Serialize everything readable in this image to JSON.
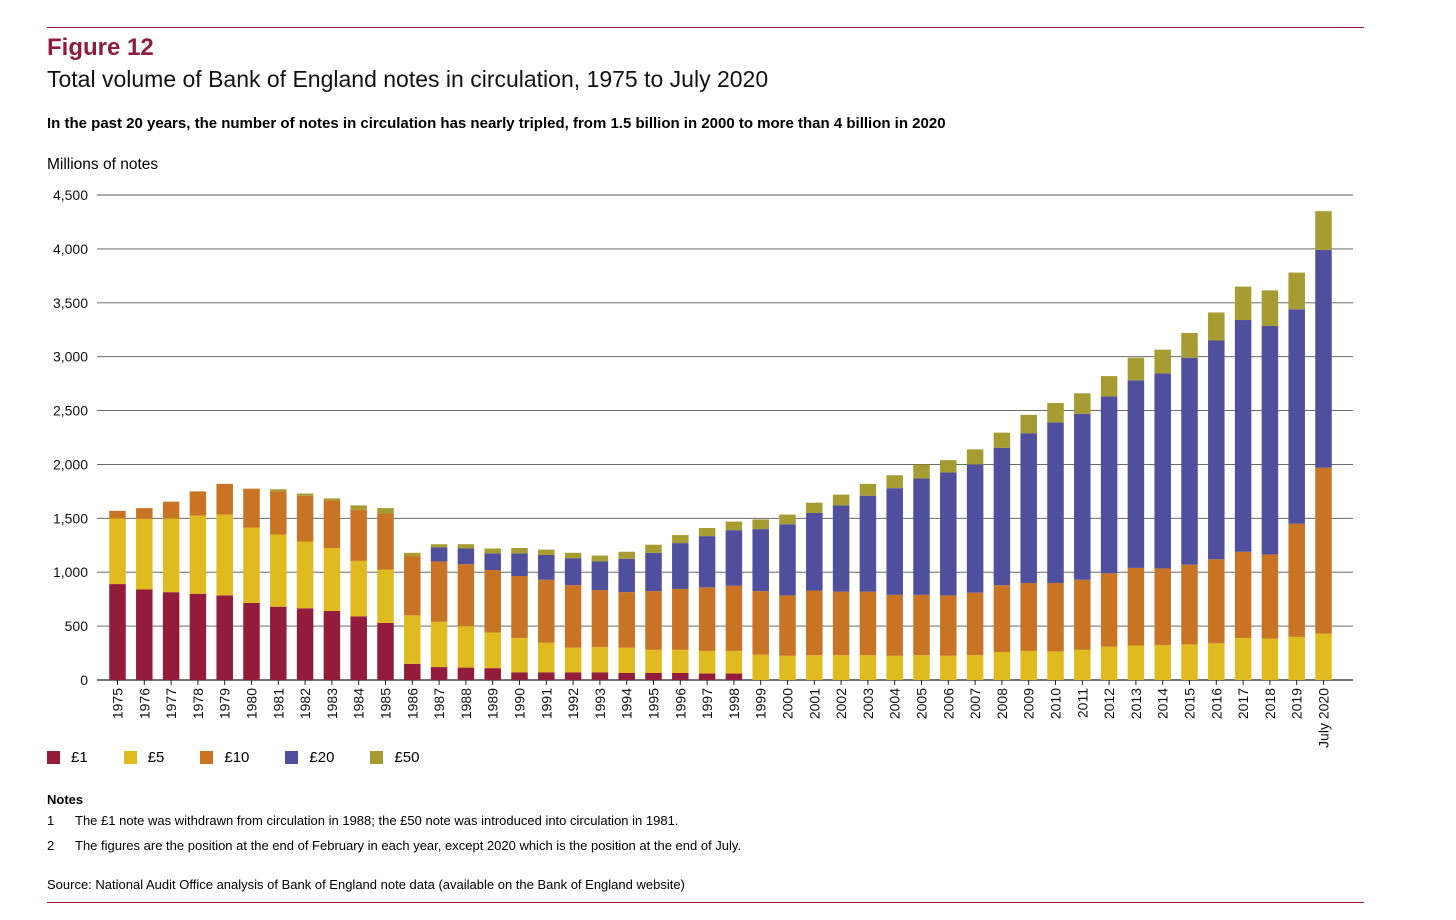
{
  "header": {
    "figure_label": "Figure 12",
    "title": "Total volume of Bank of England notes in circulation, 1975 to July 2020",
    "subtitle": "In the past 20 years, the number of notes in circulation has nearly tripled, from 1.5 billion in 2000 to more than 4 billion in 2020"
  },
  "colors": {
    "accent_rule": "#9b1b3f",
    "figure_label": "#8f1c3e",
    "gridline": "#555555",
    "pound1": "#931c3d",
    "pound5": "#e0bb1f",
    "pound10": "#c97424",
    "pound20": "#4f4f9e",
    "pound50": "#a69c31"
  },
  "chart_data": {
    "type": "bar",
    "stacked": true,
    "ylabel": "Millions of notes",
    "xlabel": "",
    "ylim": [
      0,
      4500
    ],
    "yticks": [
      0,
      500,
      1000,
      1500,
      2000,
      2500,
      3000,
      3500,
      4000,
      4500
    ],
    "ytick_labels": [
      "0",
      "500",
      "1,000",
      "1,500",
      "2,000",
      "2,500",
      "3,000",
      "3,500",
      "4,000",
      "4,500"
    ],
    "grid": true,
    "legend_position": "bottom-left",
    "categories": [
      "1975",
      "1976",
      "1977",
      "1978",
      "1979",
      "1980",
      "1981",
      "1982",
      "1983",
      "1984",
      "1985",
      "1986",
      "1987",
      "1988",
      "1989",
      "1990",
      "1991",
      "1992",
      "1993",
      "1994",
      "1995",
      "1996",
      "1997",
      "1998",
      "1999",
      "2000",
      "2001",
      "2002",
      "2003",
      "2004",
      "2005",
      "2006",
      "2007",
      "2008",
      "2009",
      "2010",
      "2011",
      "2012",
      "2013",
      "2014",
      "2015",
      "2016",
      "2017",
      "2018",
      "2019",
      "July 2020"
    ],
    "series": [
      {
        "name": "£1",
        "color": "#931c3d",
        "values": [
          890,
          840,
          815,
          800,
          785,
          715,
          680,
          665,
          640,
          590,
          530,
          150,
          120,
          115,
          110,
          70,
          70,
          70,
          70,
          65,
          65,
          65,
          60,
          60,
          0,
          0,
          0,
          0,
          0,
          0,
          0,
          0,
          0,
          0,
          0,
          0,
          0,
          0,
          0,
          0,
          0,
          0,
          0,
          0,
          0,
          0
        ]
      },
      {
        "name": "£5",
        "color": "#e0bb1f",
        "values": [
          610,
          655,
          685,
          725,
          750,
          700,
          670,
          620,
          585,
          515,
          495,
          450,
          420,
          385,
          330,
          320,
          275,
          230,
          235,
          235,
          215,
          215,
          210,
          210,
          235,
          225,
          230,
          230,
          230,
          225,
          230,
          225,
          230,
          260,
          270,
          265,
          280,
          310,
          320,
          325,
          330,
          340,
          390,
          385,
          400,
          430
        ]
      },
      {
        "name": "£10",
        "color": "#c97424",
        "values": [
          70,
          100,
          155,
          225,
          285,
          360,
          400,
          425,
          440,
          475,
          520,
          550,
          560,
          575,
          580,
          575,
          585,
          580,
          530,
          515,
          545,
          565,
          590,
          605,
          590,
          560,
          600,
          590,
          590,
          565,
          560,
          560,
          580,
          620,
          630,
          635,
          650,
          680,
          720,
          710,
          740,
          780,
          800,
          780,
          1050,
          1540
        ]
      },
      {
        "name": "£20",
        "color": "#4f4f9e",
        "values": [
          0,
          0,
          0,
          0,
          0,
          0,
          0,
          0,
          0,
          0,
          0,
          0,
          130,
          145,
          155,
          210,
          230,
          250,
          265,
          310,
          355,
          425,
          475,
          515,
          575,
          660,
          720,
          800,
          890,
          990,
          1080,
          1140,
          1190,
          1275,
          1390,
          1490,
          1540,
          1640,
          1740,
          1810,
          1920,
          2030,
          2150,
          2120,
          1990,
          2020
        ]
      },
      {
        "name": "£50",
        "color": "#a69c31",
        "values": [
          0,
          0,
          0,
          0,
          0,
          0,
          20,
          20,
          20,
          40,
          50,
          30,
          30,
          40,
          45,
          50,
          50,
          50,
          55,
          65,
          75,
          75,
          75,
          80,
          90,
          90,
          95,
          100,
          110,
          120,
          130,
          115,
          140,
          140,
          170,
          180,
          190,
          190,
          210,
          220,
          230,
          260,
          310,
          330,
          340,
          360
        ]
      }
    ]
  },
  "notes": {
    "heading": "Notes",
    "items": [
      {
        "num": "1",
        "text": "The £1 note was withdrawn from circulation in 1988; the £50 note was introduced into circulation in 1981."
      },
      {
        "num": "2",
        "text": "The figures are the position at the end of February in each year, except 2020 which is the position at the end of July."
      }
    ]
  },
  "source": "Source: National Audit Office analysis of Bank of England note data (available on the Bank of England website)"
}
